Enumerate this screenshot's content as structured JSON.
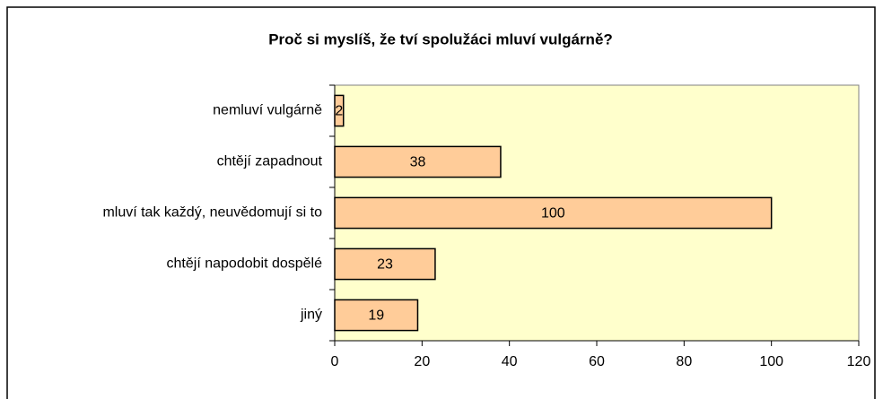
{
  "chart_data": {
    "type": "bar",
    "orientation": "horizontal",
    "title": "Proč si myslíš, že tví spolužáci mluví vulgárně?",
    "categories": [
      "nemluví vulgárně",
      "chtějí zapadnout",
      "mluví tak každý, neuvědomují si to",
      "chtějí napodobit dospělé",
      "jiný"
    ],
    "values": [
      2,
      38,
      100,
      23,
      19
    ],
    "color": "#ffcc99",
    "plot_background": "#ffffcc",
    "xlim": [
      0,
      120
    ],
    "xticks": [
      0,
      20,
      40,
      60,
      80,
      100,
      120
    ],
    "data_labels": true
  }
}
